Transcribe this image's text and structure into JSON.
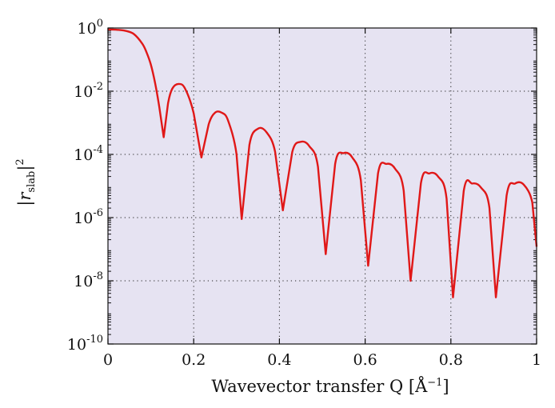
{
  "chart_data": {
    "type": "line",
    "title": "",
    "xlabel": {
      "prefix": "Wavevector transfer Q [",
      "unit": "Å",
      "exponent": "−1",
      "suffix": "]"
    },
    "ylabel": {
      "var": "r",
      "subscript": "slab",
      "exponent": "2"
    },
    "x_range": [
      0,
      1
    ],
    "y_range": [
      1e-10,
      1
    ],
    "y_scale": "log",
    "grid": true,
    "grid_style": "dotted",
    "legend": "none",
    "x_tick_labels": [
      "0",
      "0.2",
      "0.4",
      "0.6",
      "0.8",
      "1"
    ],
    "x_tick_values": [
      0,
      0.2,
      0.4,
      0.6,
      0.8,
      1
    ],
    "y_tick_exponents": [
      "0",
      "-2",
      "-4",
      "-6",
      "-8",
      "-10"
    ],
    "y_tick_values": [
      1,
      0.01,
      0.0001,
      1e-06,
      1e-08,
      1e-10
    ],
    "colors": {
      "background": "#e6e3f2",
      "line": "#e01818"
    },
    "series": [
      {
        "x": [
          0,
          0.02,
          0.04,
          0.06,
          0.08,
          0.09,
          0.1,
          0.11,
          0.12,
          0.13,
          0.14,
          0.15,
          0.165,
          0.18,
          0.2,
          0.218,
          0.235,
          0.25,
          0.265,
          0.28,
          0.3,
          0.312,
          0.33,
          0.35,
          0.37,
          0.39,
          0.408,
          0.43,
          0.45,
          0.47,
          0.49,
          0.508,
          0.53,
          0.55,
          0.57,
          0.59,
          0.607,
          0.63,
          0.65,
          0.67,
          0.69,
          0.706,
          0.73,
          0.75,
          0.77,
          0.79,
          0.805,
          0.83,
          0.85,
          0.87,
          0.89,
          0.905,
          0.93,
          0.95,
          0.97,
          0.99,
          1.0
        ],
        "y": [
          0.9,
          0.88,
          0.82,
          0.65,
          0.32,
          0.17,
          0.07,
          0.018,
          0.003,
          0.00035,
          0.004,
          0.012,
          0.017,
          0.012,
          0.002,
          8e-05,
          0.0009,
          0.0021,
          0.0021,
          0.0012,
          0.0001,
          9e-07,
          0.0002,
          0.00065,
          0.0005,
          0.00012,
          1.7e-06,
          0.00012,
          0.00025,
          0.00018,
          4e-05,
          7e-08,
          5e-05,
          0.00011,
          8e-05,
          1.5e-05,
          3e-08,
          2.5e-05,
          5e-05,
          3.5e-05,
          7e-06,
          1e-08,
          1.2e-05,
          2.5e-05,
          2e-05,
          4e-06,
          3e-09,
          7e-06,
          1.2e-05,
          9e-06,
          2e-06,
          3e-09,
          5e-06,
          1.2e-05,
          1.1e-05,
          3e-06,
          1.2e-07
        ]
      }
    ]
  }
}
